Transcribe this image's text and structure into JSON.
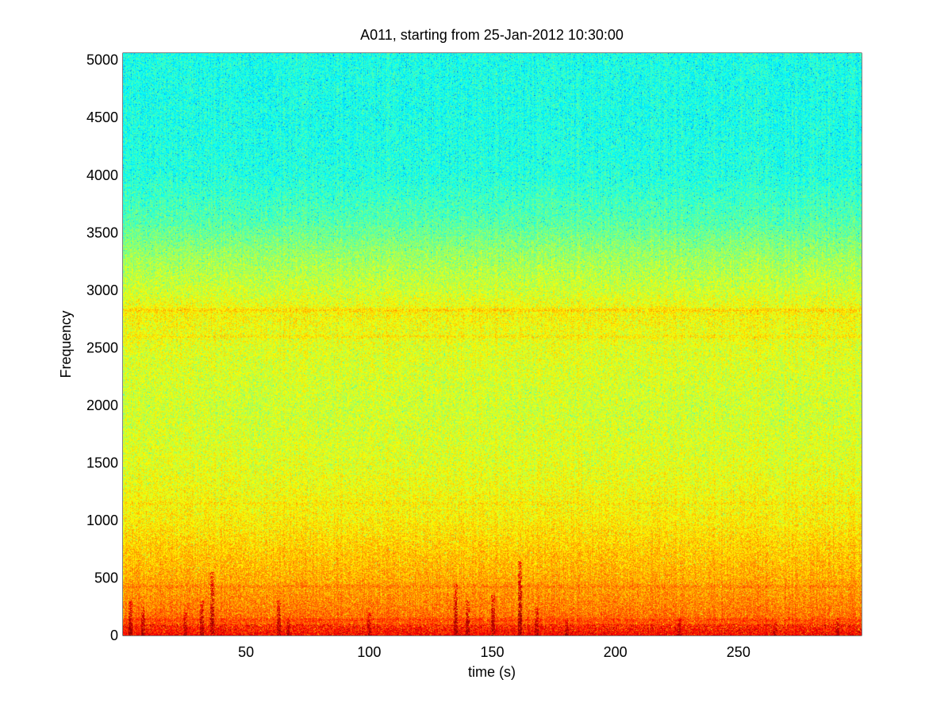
{
  "chart_data": {
    "type": "heatmap",
    "title": "A011, starting from 25-Jan-2012 10:30:00",
    "xlabel": "time (s)",
    "ylabel": "Frequency",
    "xlim": [
      0,
      300
    ],
    "ylim": [
      0,
      5060
    ],
    "x_ticks": [
      50,
      100,
      150,
      200,
      250
    ],
    "y_ticks": [
      0,
      500,
      1000,
      1500,
      2000,
      2500,
      3000,
      3500,
      4000,
      4500,
      5000
    ],
    "grid": false,
    "colormap": "jet",
    "power_bands": [
      {
        "freq": 0,
        "level": 0.86
      },
      {
        "freq": 40,
        "level": 0.83
      },
      {
        "freq": 150,
        "level": 0.77
      },
      {
        "freq": 500,
        "level": 0.71
      },
      {
        "freq": 800,
        "level": 0.67
      },
      {
        "freq": 1000,
        "level": 0.64
      },
      {
        "freq": 1500,
        "level": 0.6
      },
      {
        "freq": 2000,
        "level": 0.58
      },
      {
        "freq": 2500,
        "level": 0.6
      },
      {
        "freq": 2800,
        "level": 0.63
      },
      {
        "freq": 3000,
        "level": 0.58
      },
      {
        "freq": 3300,
        "level": 0.53
      },
      {
        "freq": 3600,
        "level": 0.46
      },
      {
        "freq": 4000,
        "level": 0.41
      },
      {
        "freq": 4500,
        "level": 0.4
      },
      {
        "freq": 5060,
        "level": 0.4
      }
    ],
    "harmonic_lines": [
      {
        "freq": 2830,
        "boost": 0.05
      },
      {
        "freq": 2600,
        "boost": 0.035
      },
      {
        "freq": 1150,
        "boost": 0.02
      },
      {
        "freq": 430,
        "boost": 0.03
      },
      {
        "freq": 140,
        "boost": 0.04
      }
    ],
    "transients": [
      {
        "time": 3,
        "top_freq": 300
      },
      {
        "time": 8,
        "top_freq": 250
      },
      {
        "time": 25,
        "top_freq": 200
      },
      {
        "time": 32,
        "top_freq": 300
      },
      {
        "time": 36,
        "top_freq": 550
      },
      {
        "time": 63,
        "top_freq": 300
      },
      {
        "time": 67,
        "top_freq": 150
      },
      {
        "time": 100,
        "top_freq": 200
      },
      {
        "time": 135,
        "top_freq": 450
      },
      {
        "time": 140,
        "top_freq": 300
      },
      {
        "time": 150,
        "top_freq": 350
      },
      {
        "time": 161,
        "top_freq": 650
      },
      {
        "time": 168,
        "top_freq": 250
      },
      {
        "time": 180,
        "top_freq": 150
      },
      {
        "time": 226,
        "top_freq": 150
      },
      {
        "time": 265,
        "top_freq": 120
      },
      {
        "time": 290,
        "top_freq": 150
      }
    ]
  },
  "colors": {
    "background": "#ffffff",
    "axes_line": "#000000",
    "text": "#000000"
  }
}
